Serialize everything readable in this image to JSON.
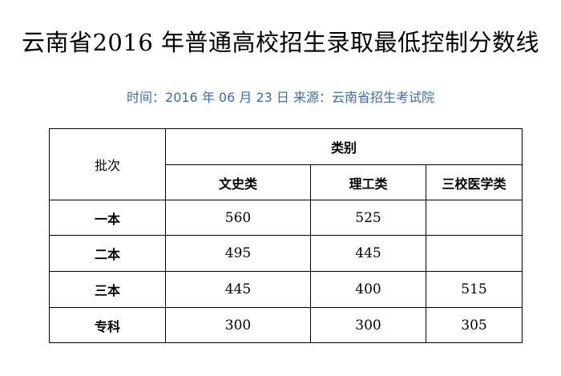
{
  "title": "云南省2016 年普通高校招生录取最低控制分数线",
  "subtitle": "时间：2016 年 06 月 23 日  来源：云南省招生考试院",
  "table": {
    "batch_header": "批次",
    "category_header": "类别",
    "columns": [
      "文史类",
      "理工类",
      "三校医学类"
    ],
    "rows": [
      {
        "batch": "一本",
        "values": [
          "560",
          "525",
          ""
        ]
      },
      {
        "batch": "二本",
        "values": [
          "495",
          "445",
          ""
        ]
      },
      {
        "batch": "三本",
        "values": [
          "445",
          "400",
          "515"
        ]
      },
      {
        "batch": "专科",
        "values": [
          "300",
          "300",
          "305"
        ]
      }
    ]
  }
}
